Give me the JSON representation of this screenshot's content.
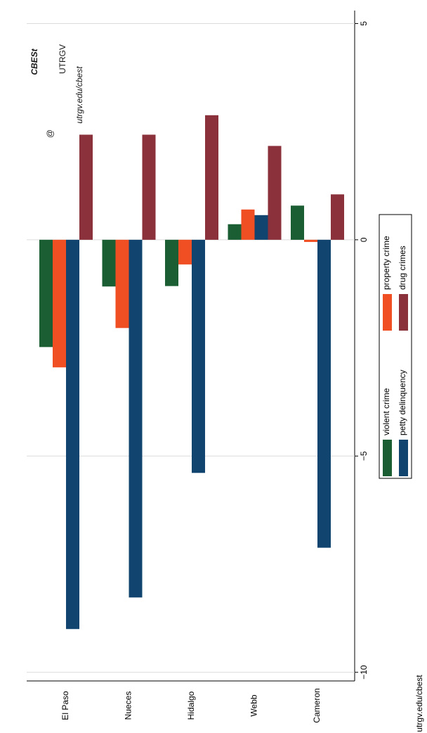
{
  "chart_data": {
    "type": "bar",
    "categories": [
      "El Paso",
      "Nueces",
      "Hidalgo",
      "Webb",
      "Cameron"
    ],
    "series": [
      {
        "name": "violent crime",
        "color": "#1b5e34",
        "values": [
          -2.48,
          -1.08,
          -1.07,
          0.36,
          0.79
        ]
      },
      {
        "name": "property crime",
        "color": "#f04e23",
        "values": [
          -2.95,
          -2.04,
          -0.57,
          0.7,
          -0.05
        ]
      },
      {
        "name": "petty delinquency",
        "color": "#11446e",
        "values": [
          -9.0,
          -8.27,
          -5.39,
          0.57,
          -7.12
        ]
      },
      {
        "name": "drug crimes",
        "color": "#8b313b",
        "values": [
          2.43,
          2.43,
          2.88,
          2.17,
          1.05
        ]
      }
    ],
    "ylim": [
      -10.2,
      5.3
    ],
    "yticks": [
      {
        "value": -10,
        "label": "−10"
      },
      {
        "value": -5,
        "label": "−5"
      },
      0,
      5
    ],
    "grid": true,
    "watermark": {
      "at": "@",
      "brand": "CBESt",
      "school": "UTRGV",
      "url": "utrgv.edu/cbest"
    },
    "footer": "utrgv.edu/cbest"
  }
}
